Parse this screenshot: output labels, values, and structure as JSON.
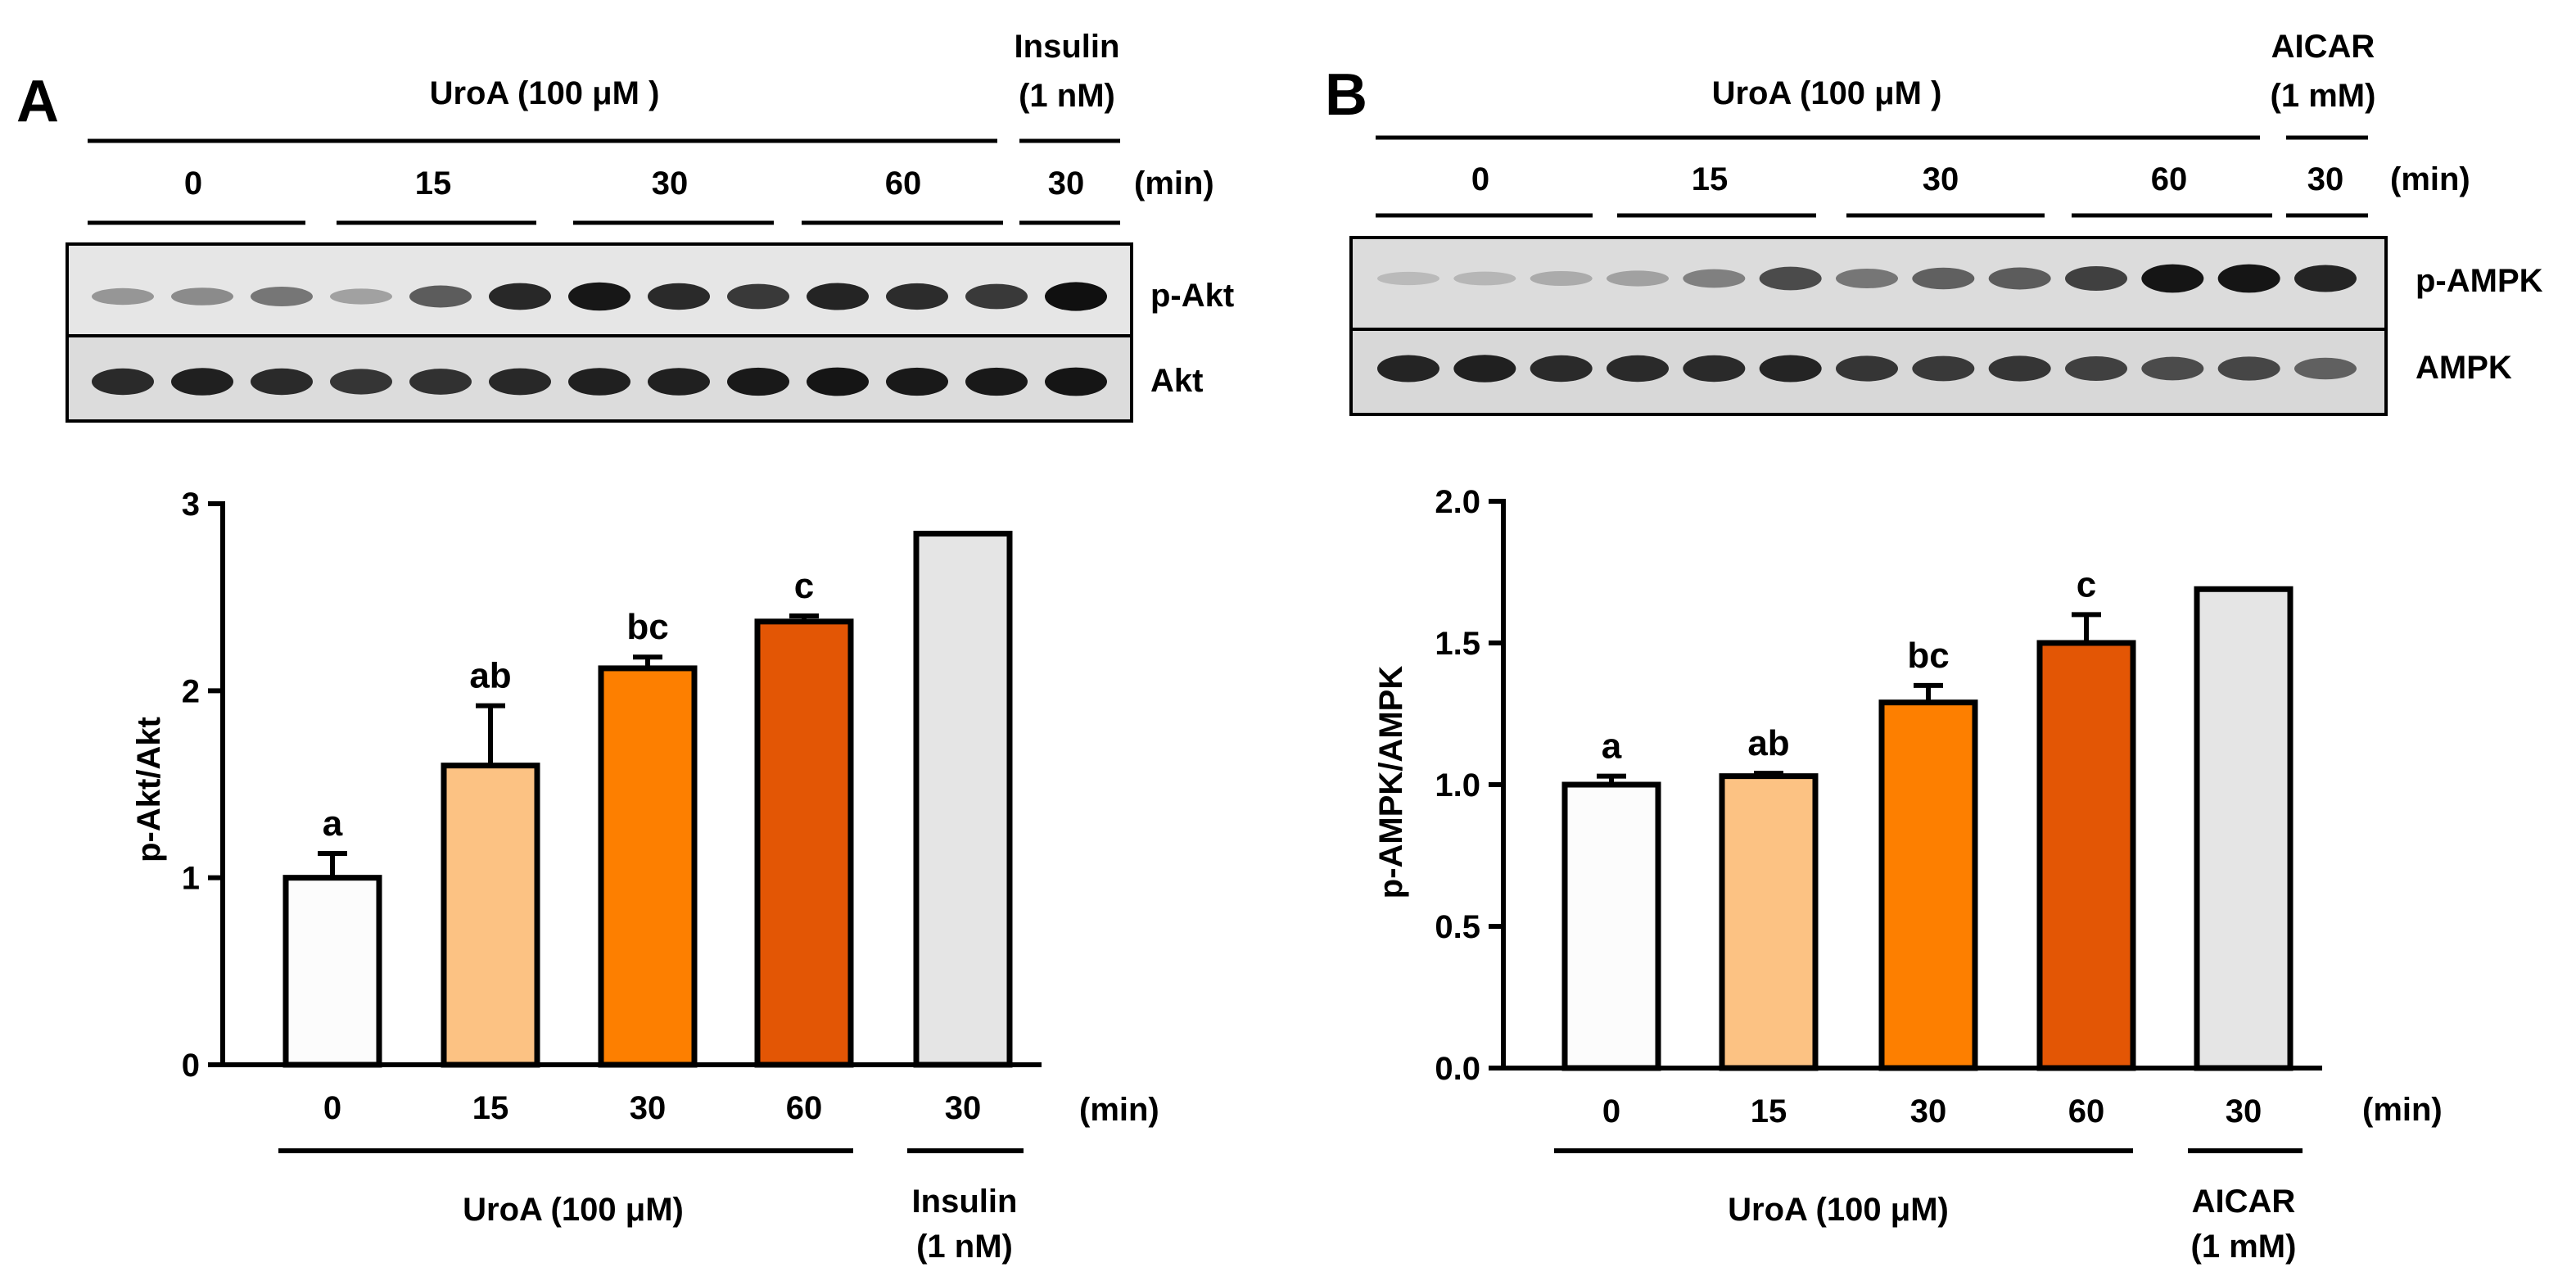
{
  "panels": [
    {
      "letter": "A",
      "blot": {
        "treatment_label": "UroA (100 μM )",
        "control_label_line1": "Insulin",
        "control_label_line2": "(1 nM)",
        "time_labels": [
          "0",
          "15",
          "30",
          "60",
          "30"
        ],
        "time_unit": "(min)",
        "rows": [
          {
            "label": "p-Akt",
            "lane_intensity": [
              0.35,
              0.4,
              0.5,
              0.3,
              0.62,
              0.86,
              0.94,
              0.85,
              0.78,
              0.88,
              0.84,
              0.78,
              0.97
            ]
          },
          {
            "label": "Akt",
            "lane_intensity": [
              0.85,
              0.9,
              0.85,
              0.8,
              0.82,
              0.86,
              0.9,
              0.9,
              0.93,
              0.95,
              0.93,
              0.93,
              0.95
            ]
          }
        ]
      },
      "bottom_group_label": "UroA (100 μM)",
      "bottom_control_line1": "Insulin",
      "bottom_control_line2": "(1 nM)"
    },
    {
      "letter": "B",
      "blot": {
        "treatment_label": "UroA (100 μM )",
        "control_label_line1": "AICAR",
        "control_label_line2": "(1 mM)",
        "time_labels": [
          "0",
          "15",
          "30",
          "60",
          "30"
        ],
        "time_unit": "(min)",
        "rows": [
          {
            "label": "p-AMPK",
            "lane_intensity": [
              0.18,
              0.2,
              0.25,
              0.3,
              0.45,
              0.7,
              0.5,
              0.6,
              0.62,
              0.75,
              0.95,
              0.95,
              0.88
            ]
          },
          {
            "label": "AMPK",
            "lane_intensity": [
              0.88,
              0.9,
              0.85,
              0.85,
              0.85,
              0.88,
              0.8,
              0.78,
              0.8,
              0.75,
              0.7,
              0.72,
              0.6
            ]
          }
        ]
      },
      "bottom_group_label": "UroA (100 μM)",
      "bottom_control_line1": "AICAR",
      "bottom_control_line2": "(1 mM)"
    }
  ],
  "chart_data": [
    {
      "type": "bar",
      "title": "",
      "xlabel": "(min)",
      "ylabel": "p-Akt/Akt",
      "ylim": [
        0,
        3
      ],
      "yticks": [
        "0",
        "1",
        "2",
        "3"
      ],
      "categories": [
        "0",
        "15",
        "30",
        "60",
        "30"
      ],
      "values": [
        1.0,
        1.6,
        2.12,
        2.37,
        2.84
      ],
      "errors": [
        0.13,
        0.32,
        0.06,
        0.03,
        0
      ],
      "letters": [
        "a",
        "ab",
        "bc",
        "c",
        ""
      ],
      "colors": [
        "#fcfcfc",
        "#fcc283",
        "#fd7f00",
        "#e35605",
        "#e5e5e5"
      ]
    },
    {
      "type": "bar",
      "title": "",
      "xlabel": "(min)",
      "ylabel": "p-AMPK/AMPK",
      "ylim": [
        0,
        2
      ],
      "yticks": [
        "0.0",
        "0.5",
        "1.0",
        "1.5",
        "2.0"
      ],
      "categories": [
        "0",
        "15",
        "30",
        "60",
        "30"
      ],
      "values": [
        1.0,
        1.03,
        1.29,
        1.5,
        1.69
      ],
      "errors": [
        0.03,
        0.01,
        0.06,
        0.1,
        0
      ],
      "letters": [
        "a",
        "ab",
        "bc",
        "c",
        ""
      ],
      "colors": [
        "#fcfcfc",
        "#fcc283",
        "#fd7f00",
        "#e35605",
        "#e5e5e5"
      ]
    }
  ]
}
